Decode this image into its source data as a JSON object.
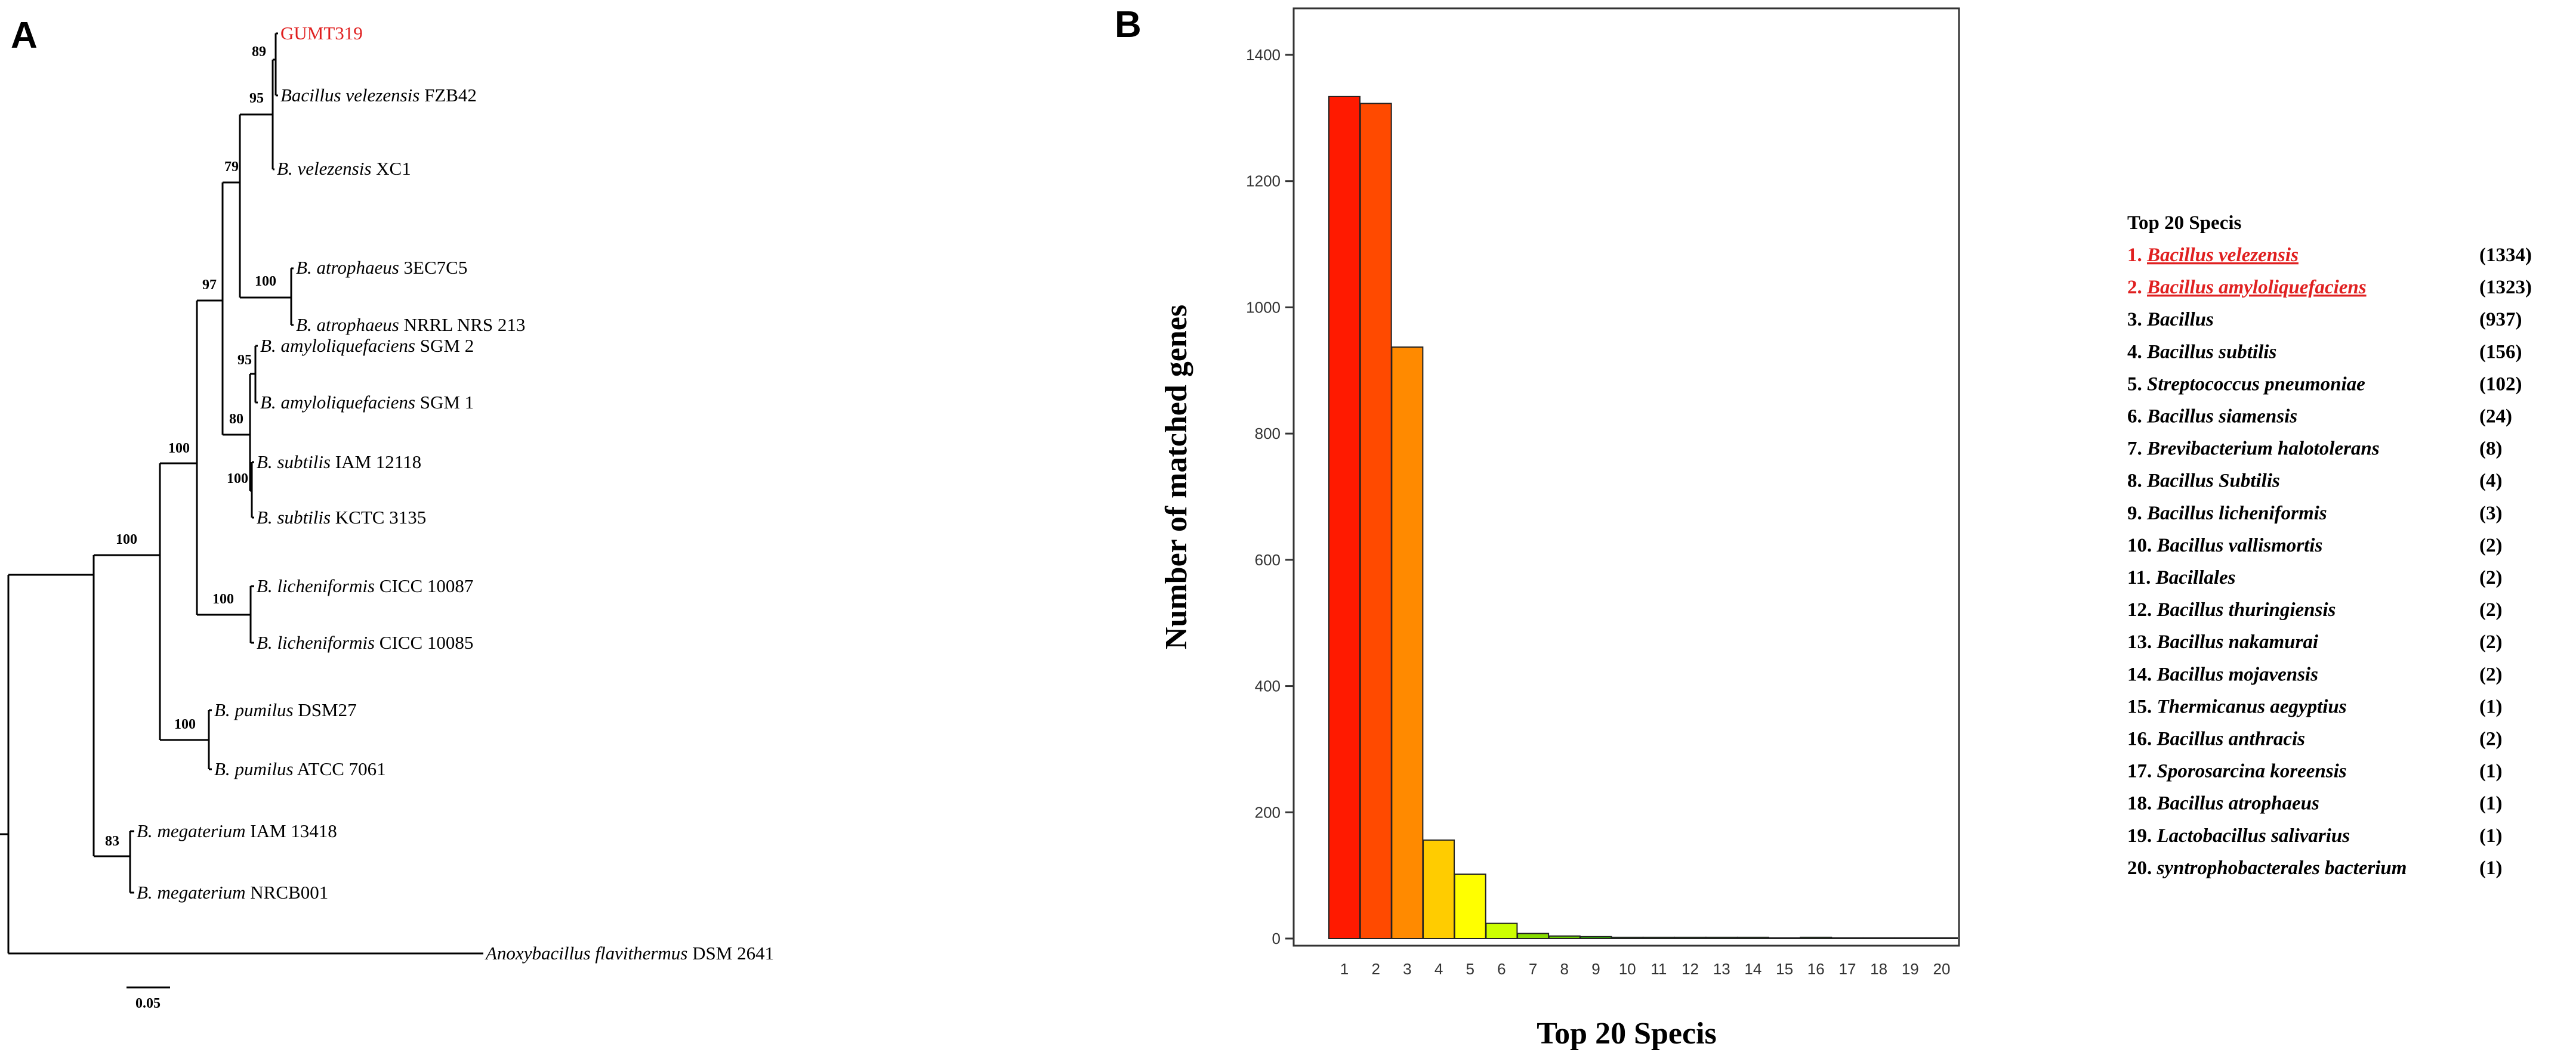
{
  "panels": {
    "a": "A",
    "b": "B"
  },
  "tree": {
    "taxa": [
      {
        "id": "gumt",
        "genus": "",
        "species": "",
        "strain": "GUMT319",
        "highlight": true
      },
      {
        "id": "fzb42",
        "genus": "Bacillus",
        "species": "velezensis",
        "strain": "FZB42",
        "highlight": false
      },
      {
        "id": "xc1",
        "genus": "B.",
        "species": "velezensis",
        "strain": "XC1",
        "highlight": false
      },
      {
        "id": "atr3ec",
        "genus": "B.",
        "species": "atrophaeus",
        "strain": "3EC7C5",
        "highlight": false
      },
      {
        "id": "atrnrrl",
        "genus": "B.",
        "species": "atrophaeus",
        "strain": "NRRL NRS 213",
        "highlight": false
      },
      {
        "id": "amy2",
        "genus": "B.",
        "species": "amyloliquefaciens",
        "strain": "SGM 2",
        "highlight": false
      },
      {
        "id": "amy1",
        "genus": "B.",
        "species": "amyloliquefaciens",
        "strain": "SGM 1",
        "highlight": false
      },
      {
        "id": "subiam",
        "genus": "B.",
        "species": "subtilis",
        "strain": "IAM 12118",
        "highlight": false
      },
      {
        "id": "subkctc",
        "genus": "B.",
        "species": "subtilis",
        "strain": "KCTC 3135",
        "highlight": false
      },
      {
        "id": "lic87",
        "genus": "B.",
        "species": "licheniformis",
        "strain": "CICC 10087",
        "highlight": false
      },
      {
        "id": "lic85",
        "genus": "B.",
        "species": "licheniformis",
        "strain": "CICC 10085",
        "highlight": false
      },
      {
        "id": "pumdsm",
        "genus": "B.",
        "species": "pumilus",
        "strain": "DSM27",
        "highlight": false
      },
      {
        "id": "pumatcc",
        "genus": "B.",
        "species": "pumilus",
        "strain": "ATCC 7061",
        "highlight": false
      },
      {
        "id": "megiam",
        "genus": "B.",
        "species": "megaterium",
        "strain": "IAM 13418",
        "highlight": false
      },
      {
        "id": "megnrcb",
        "genus": "B.",
        "species": "megaterium",
        "strain": "NRCB001",
        "highlight": false
      },
      {
        "id": "anoxy",
        "genus": "Anoxybacillus",
        "species": "flavithermus",
        "strain": "DSM 2641",
        "highlight": false
      }
    ],
    "bootstrap": [
      "89",
      "95",
      "79",
      "100",
      "97",
      "95",
      "80",
      "100",
      "100",
      "100",
      "100",
      "83"
    ],
    "scale_label": "0.05"
  },
  "chart_data": {
    "type": "bar",
    "title": "",
    "xlabel": "Top 20 Specis",
    "ylabel": "Number of matched genes",
    "categories": [
      "1",
      "2",
      "3",
      "4",
      "5",
      "6",
      "7",
      "8",
      "9",
      "10",
      "11",
      "12",
      "13",
      "14",
      "15",
      "16",
      "17",
      "18",
      "19",
      "20"
    ],
    "values": [
      1334,
      1323,
      937,
      156,
      102,
      24,
      8,
      4,
      3,
      2,
      2,
      2,
      2,
      2,
      1,
      2,
      1,
      1,
      1,
      1
    ],
    "bar_colors": [
      "#ff1a00",
      "#ff4a00",
      "#ff8a00",
      "#ffcc00",
      "#ffff00",
      "#ccff00",
      "#88dd00",
      "#66cc00",
      "#33aa00",
      "#228800",
      "#228800",
      "#228800",
      "#228800",
      "#228800",
      "#228800",
      "#228800",
      "#228800",
      "#228800",
      "#228800",
      "#228800"
    ],
    "ylim": [
      0,
      1420
    ],
    "yticks": [
      "0",
      "200",
      "400",
      "600",
      "800",
      "1000",
      "1200",
      "1400"
    ],
    "legend_title": "Top 20 Specis",
    "legend": [
      {
        "name": "1. Bacillus velezensis",
        "count": "(1334)",
        "highlight": true
      },
      {
        "name": "2. Bacillus amyloliquefaciens",
        "count": "(1323)",
        "highlight": true
      },
      {
        "name": "3. Bacillus",
        "count": "(937)",
        "highlight": false
      },
      {
        "name": "4. Bacillus subtilis",
        "count": "(156)",
        "highlight": false
      },
      {
        "name": "5. Streptococcus pneumoniae",
        "count": "(102)",
        "highlight": false
      },
      {
        "name": "6. Bacillus siamensis",
        "count": "(24)",
        "highlight": false
      },
      {
        "name": "7. Brevibacterium halotolerans",
        "count": "(8)",
        "highlight": false
      },
      {
        "name": "8. Bacillus Subtilis",
        "count": "(4)",
        "highlight": false
      },
      {
        "name": "9. Bacillus licheniformis",
        "count": "(3)",
        "highlight": false
      },
      {
        "name": "10. Bacillus vallismortis",
        "count": "(2)",
        "highlight": false
      },
      {
        "name": "11. Bacillales",
        "count": "(2)",
        "highlight": false
      },
      {
        "name": "12. Bacillus thuringiensis",
        "count": "(2)",
        "highlight": false
      },
      {
        "name": "13. Bacillus nakamurai",
        "count": "(2)",
        "highlight": false
      },
      {
        "name": "14. Bacillus mojavensis",
        "count": "(2)",
        "highlight": false
      },
      {
        "name": "15. Thermicanus aegyptius",
        "count": "(1)",
        "highlight": false
      },
      {
        "name": "16. Bacillus anthracis",
        "count": "(2)",
        "highlight": false
      },
      {
        "name": "17. Sporosarcina koreensis",
        "count": "(1)",
        "highlight": false
      },
      {
        "name": "18. Bacillus atrophaeus",
        "count": "(1)",
        "highlight": false
      },
      {
        "name": "19. Lactobacillus salivarius",
        "count": "(1)",
        "highlight": false
      },
      {
        "name": "20. syntrophobacterales bacterium",
        "count": "(1)",
        "highlight": false
      }
    ],
    "highlight_color": "#e02020"
  }
}
